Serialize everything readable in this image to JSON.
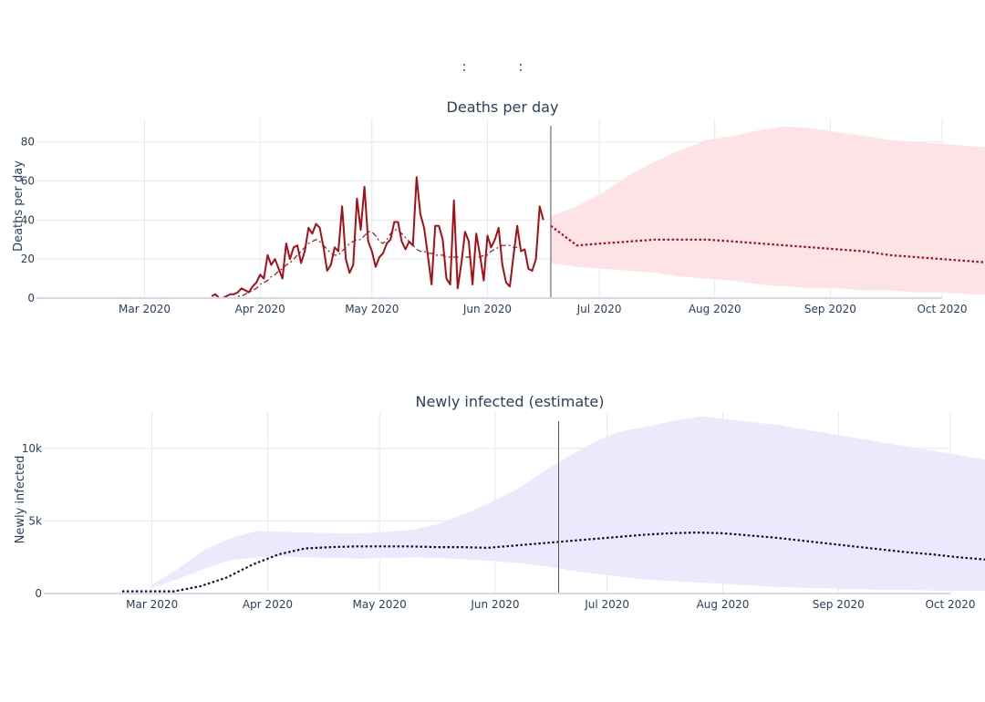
{
  "header": {
    "title_parts": [
      ":",
      ":"
    ]
  },
  "colors": {
    "deaths_line": "#a50f15",
    "deaths_band": "#fde3e6",
    "infected_line": "#1a0a3a",
    "infected_band": "#ede9fd",
    "grid": "#e5e8f0",
    "divider": "#555555"
  },
  "chart_data": [
    {
      "type": "line",
      "title": "Deaths per day",
      "ylabel": "Deaths per day",
      "xlim": [
        "2020-02-01",
        "2020-10-01"
      ],
      "ylim": [
        0,
        92
      ],
      "x_ticks": [
        "Mar 2020",
        "Apr 2020",
        "May 2020",
        "Jun 2020",
        "Jul 2020",
        "Aug 2020",
        "Sep 2020",
        "Oct 2020"
      ],
      "x_tick_dates": [
        "2020-03-01",
        "2020-04-01",
        "2020-05-01",
        "2020-06-01",
        "2020-07-01",
        "2020-08-01",
        "2020-09-01",
        "2020-10-01"
      ],
      "y_ticks": [
        "0",
        "20",
        "40",
        "60",
        "80"
      ],
      "y_tick_values": [
        0,
        20,
        40,
        60,
        80
      ],
      "cutoff_date": "2020-06-18",
      "grid": true,
      "series": [
        {
          "style": "solid",
          "start_date": "2020-03-19",
          "values": [
            1,
            2,
            0,
            0,
            1,
            2,
            2,
            3,
            5,
            4,
            3,
            6,
            8,
            12,
            10,
            22,
            17,
            20,
            15,
            10,
            28,
            20,
            26,
            27,
            18,
            24,
            36,
            33,
            38,
            36,
            26,
            14,
            17,
            26,
            24,
            47,
            20,
            13,
            17,
            51,
            35,
            57,
            29,
            24,
            16,
            21,
            23,
            28,
            30,
            39,
            39,
            29,
            25,
            29,
            27,
            62,
            43,
            36,
            22,
            7,
            37,
            37,
            30,
            10,
            7,
            50,
            5,
            18,
            34,
            29,
            7,
            33,
            22,
            9,
            32,
            26,
            30,
            36,
            17,
            8,
            6,
            22,
            37,
            24,
            25,
            15,
            14,
            20,
            47,
            40
          ]
        },
        {
          "style": "dashdot",
          "start_date": "2020-03-24",
          "values": [
            0,
            0,
            1,
            1,
            2,
            3,
            4,
            5,
            7,
            8,
            9,
            11,
            12,
            14,
            15,
            17,
            18,
            20,
            22,
            24,
            26,
            28,
            29,
            30,
            29,
            27,
            25,
            23,
            22,
            22,
            24,
            26,
            28,
            29,
            30,
            30,
            32,
            34,
            34,
            32,
            29,
            28,
            30,
            33,
            35,
            35,
            33,
            31,
            29,
            27,
            25,
            24,
            24,
            23,
            23,
            22,
            22,
            22,
            21,
            21,
            21,
            21,
            21,
            21,
            21,
            21,
            21,
            21,
            22,
            22,
            24,
            25,
            26,
            27,
            27,
            27,
            26,
            26
          ]
        },
        {
          "style": "dotted",
          "start_date": "2020-06-18",
          "values": [
            37,
            27,
            28,
            29,
            30,
            30,
            30,
            29,
            28,
            27,
            26,
            25,
            24,
            22,
            21,
            20,
            19,
            18,
            17,
            16,
            16
          ]
        }
      ],
      "band": {
        "start_date": "2020-06-18",
        "lower": [
          18,
          16,
          15,
          14,
          13,
          11,
          10,
          9,
          7,
          6,
          5,
          5,
          4,
          4,
          3,
          3,
          2,
          2,
          2,
          2,
          2
        ],
        "upper": [
          42,
          47,
          54,
          63,
          70,
          76,
          81,
          83,
          86,
          88,
          87,
          85,
          83,
          81,
          80,
          79,
          78,
          77,
          76,
          75,
          74
        ]
      }
    },
    {
      "type": "line",
      "title": "Newly infected (estimate)",
      "ylabel": "Newly infected",
      "xlim": [
        "2020-02-01",
        "2020-10-01"
      ],
      "ylim": [
        0,
        12500
      ],
      "x_ticks": [
        "Mar 2020",
        "Apr 2020",
        "May 2020",
        "Jun 2020",
        "Jul 2020",
        "Aug 2020",
        "Sep 2020",
        "Oct 2020"
      ],
      "x_tick_dates": [
        "2020-03-01",
        "2020-04-01",
        "2020-05-01",
        "2020-06-01",
        "2020-07-01",
        "2020-08-01",
        "2020-09-01",
        "2020-10-01"
      ],
      "y_ticks": [
        "0",
        "5k",
        "10k"
      ],
      "y_tick_values": [
        0,
        5000,
        10000
      ],
      "cutoff_date": "2020-06-18",
      "grid": true,
      "series": [
        {
          "style": "dotted",
          "start_date": "2020-02-22",
          "values": [
            150,
            150,
            150,
            500,
            1100,
            2000,
            2700,
            3100,
            3200,
            3250,
            3250,
            3250,
            3200,
            3200,
            3150,
            3300,
            3450,
            3600,
            3750,
            3900,
            4050,
            4150,
            4200,
            4150,
            4000,
            3850,
            3650,
            3450,
            3250,
            3050,
            2850,
            2700,
            2500,
            2350,
            2200,
            2050,
            1900,
            1800
          ]
        }
      ],
      "band": {
        "start_date": "2020-03-01",
        "lower": [
          400,
          1000,
          1700,
          2300,
          2500,
          2550,
          2500,
          2450,
          2400,
          2450,
          2500,
          2450,
          2350,
          2250,
          2100,
          1900,
          1600,
          1350,
          1150,
          950,
          850,
          750,
          650,
          550,
          450,
          400,
          350,
          300,
          250,
          250,
          200,
          200,
          200
        ],
        "upper": [
          600,
          1700,
          3000,
          3800,
          4300,
          4250,
          4200,
          4150,
          4150,
          4250,
          4400,
          4800,
          5500,
          6300,
          7200,
          8400,
          9500,
          10500,
          11200,
          11500,
          11900,
          12200,
          12000,
          11800,
          11600,
          11300,
          11000,
          10700,
          10400,
          10100,
          9800,
          9500,
          9200
        ]
      }
    }
  ]
}
